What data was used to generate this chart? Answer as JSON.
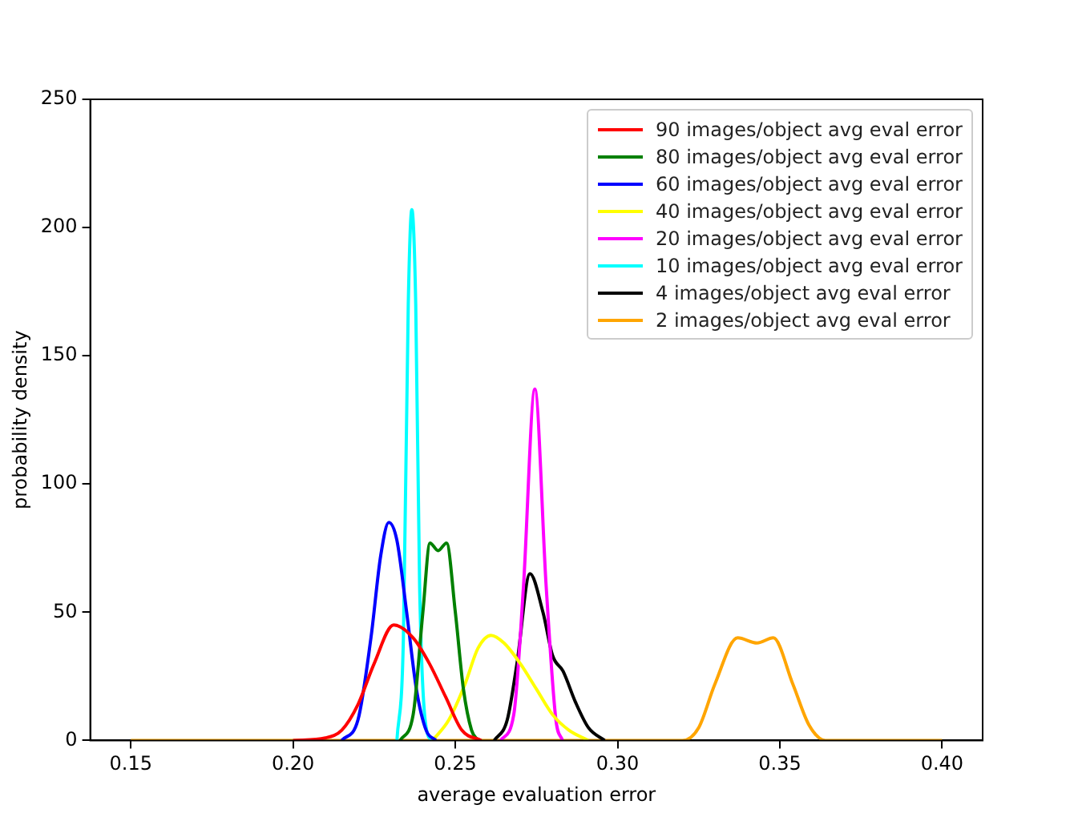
{
  "chart_data": {
    "type": "line",
    "xlabel": "average evaluation error",
    "ylabel": "probability density",
    "xlim": [
      0.1375,
      0.4125
    ],
    "ylim": [
      0,
      250
    ],
    "xticks": [
      {
        "value": 0.15,
        "label": "0.15"
      },
      {
        "value": 0.2,
        "label": "0.20"
      },
      {
        "value": 0.25,
        "label": "0.25"
      },
      {
        "value": 0.3,
        "label": "0.30"
      },
      {
        "value": 0.35,
        "label": "0.35"
      },
      {
        "value": 0.4,
        "label": "0.40"
      }
    ],
    "yticks": [
      0,
      50,
      100,
      150,
      200,
      250
    ],
    "grid": false,
    "legend": "top right",
    "marker": "none",
    "line_style": "solid",
    "series": [
      {
        "name": "90 images/object avg eval error",
        "color": "#ff0000",
        "x": [
          0.2,
          0.21,
          0.215,
          0.22,
          0.225,
          0.231,
          0.237,
          0.242,
          0.247,
          0.252,
          0.258
        ],
        "values": [
          0,
          1,
          4,
          14,
          30,
          45,
          40,
          30,
          17,
          4,
          0
        ]
      },
      {
        "name": "80 images/object avg eval error",
        "color": "#008000",
        "x": [
          0.233,
          0.237,
          0.24,
          0.2422,
          0.2447,
          0.2473,
          0.25,
          0.2525,
          0.255,
          0.257
        ],
        "values": [
          0,
          10,
          50,
          77,
          74,
          77,
          50,
          20,
          4,
          0
        ]
      },
      {
        "name": "60 images/object avg eval error",
        "color": "#0000ff",
        "x": [
          0.215,
          0.22,
          0.224,
          0.227,
          0.2295,
          0.232,
          0.235,
          0.238,
          0.241,
          0.244
        ],
        "values": [
          0,
          8,
          40,
          72,
          85,
          78,
          50,
          20,
          4,
          0
        ]
      },
      {
        "name": "40 images/object avg eval error",
        "color": "#ffff00",
        "x": [
          0.243,
          0.248,
          0.253,
          0.257,
          0.261,
          0.265,
          0.27,
          0.275,
          0.28,
          0.285,
          0.291
        ],
        "values": [
          0,
          8,
          22,
          36,
          41,
          38,
          30,
          20,
          10,
          4,
          0
        ]
      },
      {
        "name": "20 images/object avg eval error",
        "color": "#ff00ff",
        "x": [
          0.264,
          0.268,
          0.271,
          0.2745,
          0.278,
          0.281,
          0.283
        ],
        "values": [
          0,
          10,
          60,
          137,
          60,
          8,
          0
        ]
      },
      {
        "name": "10 images/object avg eval error",
        "color": "#00ffff",
        "x": [
          0.232,
          0.234,
          0.2355,
          0.2366,
          0.2378,
          0.239,
          0.241,
          0.243
        ],
        "values": [
          0,
          40,
          170,
          207,
          170,
          60,
          5,
          0
        ]
      },
      {
        "name": "4 images/object avg eval error",
        "color": "#000000",
        "x": [
          0.262,
          0.266,
          0.269,
          0.273,
          0.277,
          0.28,
          0.2832,
          0.287,
          0.291,
          0.296
        ],
        "values": [
          0,
          8,
          30,
          65,
          50,
          33,
          27,
          15,
          5,
          0
        ]
      },
      {
        "name": "2 images/object avg eval error",
        "color": "#ffa500",
        "x": [
          0.15,
          0.32,
          0.325,
          0.33,
          0.337,
          0.343,
          0.348,
          0.354,
          0.359,
          0.364,
          0.4
        ],
        "values": [
          0,
          0,
          5,
          22,
          40,
          38,
          40,
          22,
          6,
          0,
          0
        ]
      }
    ]
  }
}
